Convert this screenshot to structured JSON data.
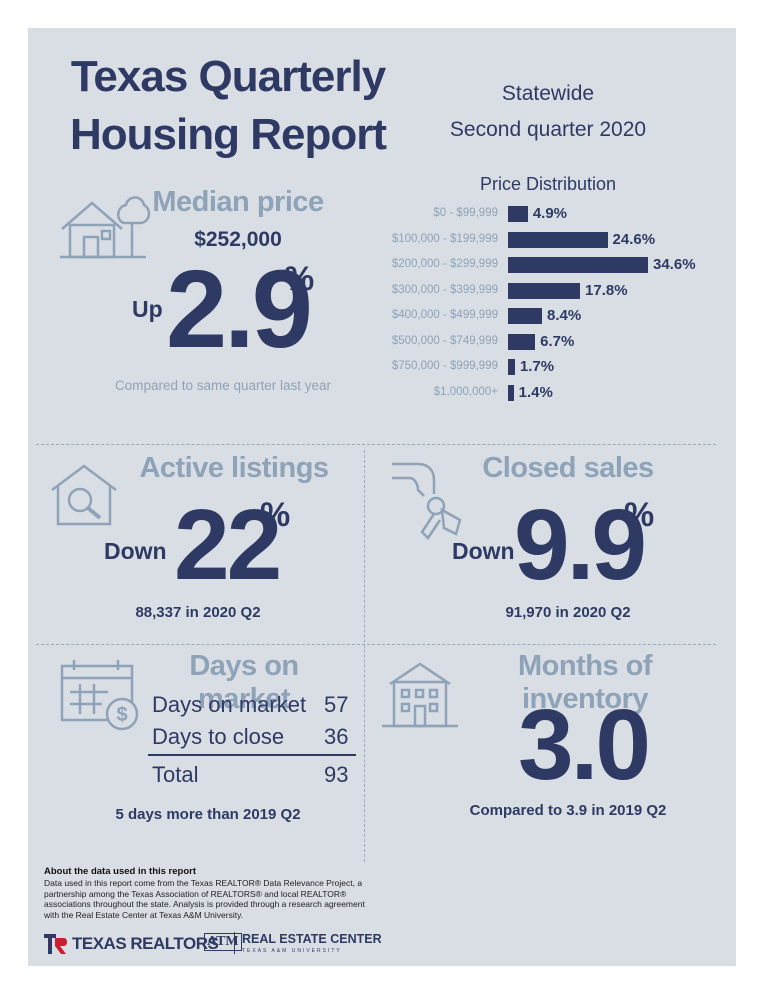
{
  "header": {
    "title_line1": "Texas Quarterly",
    "title_line2": "Housing Report",
    "region": "Statewide",
    "period": "Second quarter 2020"
  },
  "median_price": {
    "heading": "Median price",
    "value": "$252,000",
    "direction": "Up",
    "change": "2.9",
    "unit": "%",
    "note": "Compared to same quarter last year",
    "icon": "house-with-tree-icon"
  },
  "chart_data": {
    "type": "bar",
    "title": "Price Distribution",
    "orientation": "horizontal",
    "categories": [
      "$0 - $99,999",
      "$100,000 - $199,999",
      "$200,000 - $299,999",
      "$300,000 - $399,999",
      "$400,000 - $499,999",
      "$500,000 - $749,999",
      "$750,000 - $999,999",
      "$1,000,000+"
    ],
    "values": [
      4.9,
      24.6,
      34.6,
      17.8,
      8.4,
      6.7,
      1.7,
      1.4
    ],
    "value_labels": [
      "4.9%",
      "24.6%",
      "34.6%",
      "17.8%",
      "8.4%",
      "6.7%",
      "1.7%",
      "1.4%"
    ],
    "xlim": [
      0,
      34.6
    ],
    "grid": false,
    "bar_color": "#2e3a63"
  },
  "active_listings": {
    "heading": "Active listings",
    "direction": "Down",
    "change": "22",
    "unit": "%",
    "note": "88,337 in 2020 Q2",
    "icon": "house-magnifier-icon"
  },
  "closed_sales": {
    "heading": "Closed sales",
    "direction": "Down",
    "change": "9.9",
    "unit": "%",
    "note": "91,970 in 2020 Q2",
    "icon": "hand-with-keys-icon"
  },
  "days_on_market": {
    "heading": "Days on market",
    "rows": [
      {
        "label": "Days on market",
        "value": "57"
      },
      {
        "label": "Days to close",
        "value": "36"
      }
    ],
    "total_label": "Total",
    "total_value": "93",
    "note": "5 days more than 2019 Q2",
    "icon": "calendar-dollar-icon"
  },
  "months_inventory": {
    "heading": "Months of inventory",
    "value": "3.0",
    "note": "Compared to 3.9 in 2019 Q2",
    "icon": "apartment-building-icon"
  },
  "about": {
    "heading": "About the data used in this report",
    "text": "Data used in this report come from the Texas REALTOR® Data Relevance Project, a partnership among the Texas Association of REALTORS® and local REALTOR® associations throughout the state. Analysis is provided through a research agreement with the Real Estate Center at Texas A&M University."
  },
  "logos": {
    "texas_realtors": "TEXAS REALTORS",
    "real_estate_center": "REAL ESTATE CENTER",
    "rec_sub": "TEXAS A&M UNIVERSITY",
    "tamu_mark": "ATM"
  },
  "colors": {
    "navy": "#2e3a63",
    "muted": "#8ea2b8",
    "background": "#d9dee5",
    "red": "#c8202f"
  }
}
